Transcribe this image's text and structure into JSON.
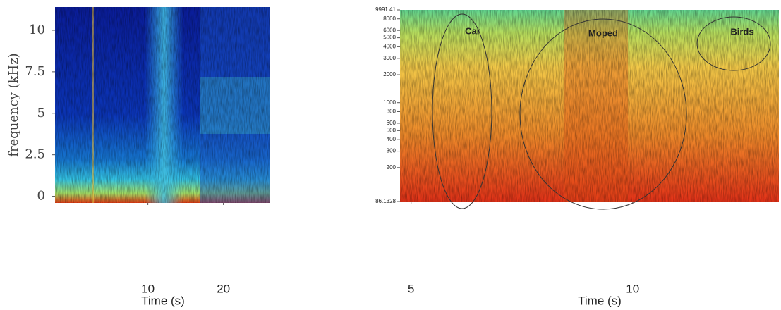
{
  "chart_data": [
    {
      "type": "spectrogram",
      "ylabel": "frequency (kHz)",
      "xlabel": "Time (s)",
      "ylim": [
        -0.4,
        11.4
      ],
      "yticks": [
        0,
        2.5,
        5,
        7.5,
        10
      ],
      "xlim": [
        -2.3,
        26.2
      ],
      "xticks": [
        10,
        20
      ],
      "log_y": false
    },
    {
      "type": "spectrogram",
      "xlabel": "Time (s)",
      "ylim": [
        86.1328,
        9991.41
      ],
      "yticks": [
        86.1328,
        200,
        300,
        400,
        500,
        600,
        800,
        1000,
        2000,
        3000,
        4000,
        5000,
        6000,
        8000,
        9991.41
      ],
      "xlim": [
        4.75,
        13.3
      ],
      "xticks": [
        5,
        10
      ],
      "log_y": true,
      "annotations": [
        "Car",
        "Moped",
        "Birds"
      ]
    }
  ]
}
